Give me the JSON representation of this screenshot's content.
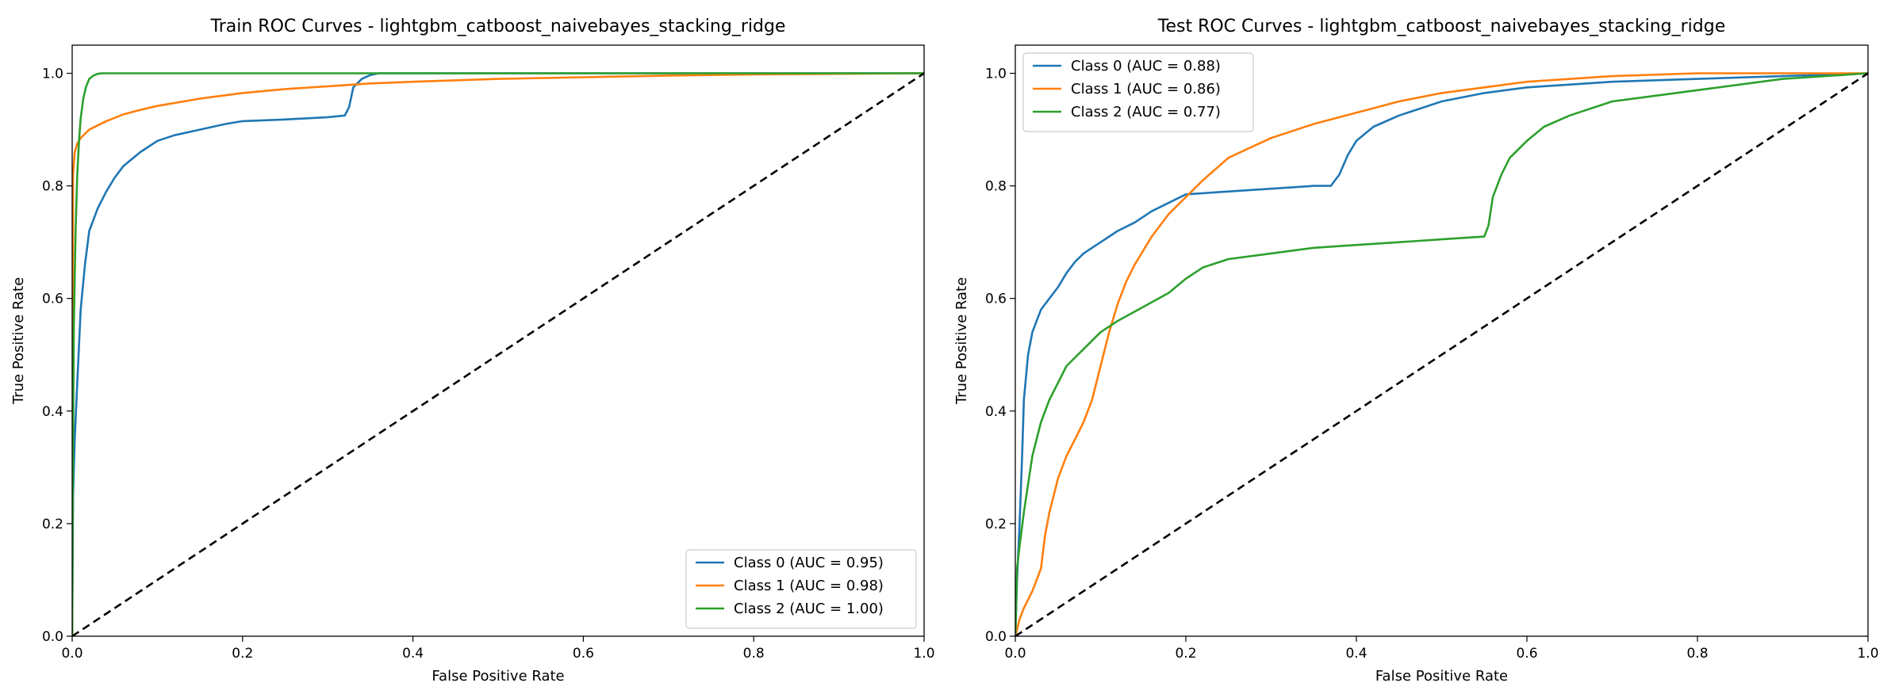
{
  "chart_data": [
    {
      "type": "line",
      "title": "Train ROC Curves - lightgbm_catboost_naivebayes_stacking_ridge",
      "xlabel": "False Positive Rate",
      "ylabel": "True Positive Rate",
      "xlim": [
        0.0,
        1.0
      ],
      "ylim": [
        0.0,
        1.05
      ],
      "xticks": [
        "0.0",
        "0.2",
        "0.4",
        "0.6",
        "0.8",
        "1.0"
      ],
      "yticks": [
        "0.0",
        "0.2",
        "0.4",
        "0.6",
        "0.8",
        "1.0"
      ],
      "grid": false,
      "legend_position": "lower-right",
      "series": [
        {
          "name": "Class 0 (AUC = 0.95)",
          "color": "#1f77b4",
          "x": [
            0,
            0.001,
            0.003,
            0.006,
            0.01,
            0.015,
            0.02,
            0.03,
            0.04,
            0.05,
            0.06,
            0.08,
            0.1,
            0.12,
            0.15,
            0.18,
            0.2,
            0.25,
            0.3,
            0.32,
            0.325,
            0.33,
            0.34,
            0.35,
            0.36,
            0.4,
            0.5,
            0.6,
            0.8,
            1.0
          ],
          "y": [
            0,
            0.25,
            0.35,
            0.45,
            0.58,
            0.66,
            0.72,
            0.76,
            0.79,
            0.815,
            0.835,
            0.86,
            0.88,
            0.89,
            0.9,
            0.91,
            0.915,
            0.918,
            0.922,
            0.925,
            0.94,
            0.975,
            0.99,
            0.997,
            1.0,
            1.0,
            1.0,
            1.0,
            1.0,
            1.0
          ]
        },
        {
          "name": "Class 1 (AUC = 0.98)",
          "color": "#ff7f0e",
          "x": [
            0,
            0.001,
            0.003,
            0.006,
            0.01,
            0.02,
            0.04,
            0.06,
            0.08,
            0.1,
            0.15,
            0.2,
            0.25,
            0.3,
            0.35,
            0.4,
            0.5,
            0.6,
            0.7,
            0.8,
            0.9,
            1.0
          ],
          "y": [
            0,
            0.82,
            0.86,
            0.875,
            0.885,
            0.9,
            0.915,
            0.927,
            0.935,
            0.942,
            0.955,
            0.965,
            0.972,
            0.977,
            0.982,
            0.985,
            0.99,
            0.993,
            0.996,
            0.998,
            0.999,
            1.0
          ]
        },
        {
          "name": "Class 2 (AUC = 1.00)",
          "color": "#2ca02c",
          "x": [
            0,
            0.001,
            0.002,
            0.004,
            0.006,
            0.008,
            0.01,
            0.013,
            0.016,
            0.02,
            0.025,
            0.03,
            0.035,
            0.05,
            0.1,
            0.5,
            1.0
          ],
          "y": [
            0,
            0.35,
            0.55,
            0.72,
            0.82,
            0.88,
            0.92,
            0.955,
            0.975,
            0.99,
            0.996,
            0.999,
            1.0,
            1.0,
            1.0,
            1.0,
            1.0
          ]
        },
        {
          "name": "",
          "color": "#000000",
          "dashed": true,
          "x": [
            0,
            1
          ],
          "y": [
            0,
            1
          ]
        }
      ]
    },
    {
      "type": "line",
      "title": "Test ROC Curves - lightgbm_catboost_naivebayes_stacking_ridge",
      "xlabel": "False Positive Rate",
      "ylabel": "True Positive Rate",
      "xlim": [
        0.0,
        1.0
      ],
      "ylim": [
        0.0,
        1.05
      ],
      "xticks": [
        "0.0",
        "0.2",
        "0.4",
        "0.6",
        "0.8",
        "1.0"
      ],
      "yticks": [
        "0.0",
        "0.2",
        "0.4",
        "0.6",
        "0.8",
        "1.0"
      ],
      "grid": false,
      "legend_position": "upper-left",
      "series": [
        {
          "name": "Class 0 (AUC = 0.88)",
          "color": "#1f77b4",
          "x": [
            0,
            0.002,
            0.005,
            0.008,
            0.01,
            0.015,
            0.02,
            0.025,
            0.03,
            0.04,
            0.05,
            0.06,
            0.07,
            0.08,
            0.1,
            0.12,
            0.14,
            0.16,
            0.18,
            0.2,
            0.25,
            0.3,
            0.35,
            0.37,
            0.38,
            0.39,
            0.4,
            0.42,
            0.45,
            0.5,
            0.55,
            0.6,
            0.7,
            0.8,
            0.9,
            1.0
          ],
          "y": [
            0,
            0.1,
            0.2,
            0.32,
            0.42,
            0.5,
            0.54,
            0.56,
            0.58,
            0.6,
            0.62,
            0.645,
            0.665,
            0.68,
            0.7,
            0.72,
            0.735,
            0.755,
            0.77,
            0.785,
            0.79,
            0.795,
            0.8,
            0.8,
            0.82,
            0.855,
            0.88,
            0.905,
            0.925,
            0.95,
            0.965,
            0.975,
            0.985,
            0.99,
            0.995,
            1.0
          ]
        },
        {
          "name": "Class 1 (AUC = 0.86)",
          "color": "#ff7f0e",
          "x": [
            0,
            0.005,
            0.01,
            0.02,
            0.03,
            0.035,
            0.04,
            0.05,
            0.06,
            0.07,
            0.08,
            0.09,
            0.1,
            0.11,
            0.12,
            0.13,
            0.14,
            0.16,
            0.18,
            0.2,
            0.22,
            0.25,
            0.3,
            0.35,
            0.4,
            0.45,
            0.5,
            0.55,
            0.6,
            0.7,
            0.8,
            0.9,
            1.0
          ],
          "y": [
            0,
            0.03,
            0.05,
            0.08,
            0.12,
            0.18,
            0.22,
            0.28,
            0.32,
            0.35,
            0.38,
            0.42,
            0.48,
            0.54,
            0.59,
            0.63,
            0.66,
            0.71,
            0.75,
            0.78,
            0.81,
            0.85,
            0.885,
            0.91,
            0.93,
            0.95,
            0.965,
            0.975,
            0.985,
            0.995,
            1.0,
            1.0,
            1.0
          ]
        },
        {
          "name": "Class 2 (AUC = 0.77)",
          "color": "#2ca02c",
          "x": [
            0,
            0.002,
            0.005,
            0.01,
            0.015,
            0.02,
            0.03,
            0.04,
            0.05,
            0.06,
            0.08,
            0.1,
            0.12,
            0.15,
            0.18,
            0.2,
            0.22,
            0.25,
            0.3,
            0.35,
            0.4,
            0.45,
            0.5,
            0.55,
            0.555,
            0.56,
            0.57,
            0.58,
            0.6,
            0.62,
            0.65,
            0.7,
            0.75,
            0.8,
            0.9,
            1.0
          ],
          "y": [
            0,
            0.12,
            0.16,
            0.22,
            0.27,
            0.32,
            0.38,
            0.42,
            0.45,
            0.48,
            0.51,
            0.54,
            0.56,
            0.585,
            0.61,
            0.635,
            0.655,
            0.67,
            0.68,
            0.69,
            0.695,
            0.7,
            0.705,
            0.71,
            0.73,
            0.78,
            0.82,
            0.85,
            0.88,
            0.905,
            0.925,
            0.95,
            0.96,
            0.97,
            0.99,
            1.0
          ]
        },
        {
          "name": "",
          "color": "#000000",
          "dashed": true,
          "x": [
            0,
            1
          ],
          "y": [
            0,
            1
          ]
        }
      ]
    }
  ]
}
